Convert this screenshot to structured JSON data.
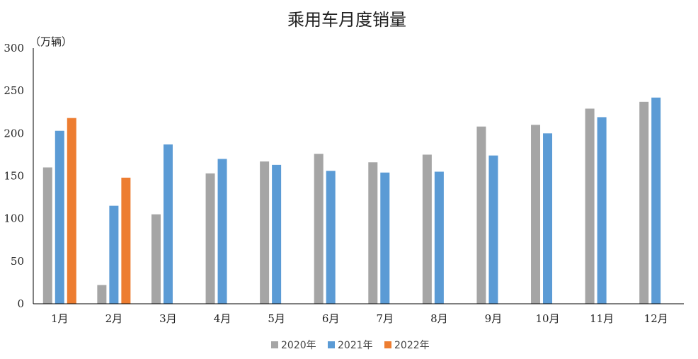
{
  "chart_data": {
    "type": "bar",
    "title": "乘用车月度销量",
    "ylabel": "（万辆）",
    "xlabel": "",
    "categories": [
      "1月",
      "2月",
      "3月",
      "4月",
      "5月",
      "6月",
      "7月",
      "8月",
      "9月",
      "10月",
      "11月",
      "12月"
    ],
    "ylim": [
      0,
      300
    ],
    "yticks": [
      0,
      50,
      100,
      150,
      200,
      250,
      300
    ],
    "series": [
      {
        "name": "2020年",
        "color": "#a5a5a5",
        "values": [
          160,
          22,
          105,
          153,
          167,
          176,
          166,
          175,
          208,
          210,
          229,
          237
        ]
      },
      {
        "name": "2021年",
        "color": "#5b9bd5",
        "values": [
          203,
          115,
          187,
          170,
          163,
          156,
          154,
          155,
          174,
          200,
          219,
          242
        ]
      },
      {
        "name": "2022年",
        "color": "#ed7d31",
        "values": [
          218,
          148,
          null,
          null,
          null,
          null,
          null,
          null,
          null,
          null,
          null,
          null
        ]
      }
    ],
    "legend": "bottom",
    "grid": false
  }
}
